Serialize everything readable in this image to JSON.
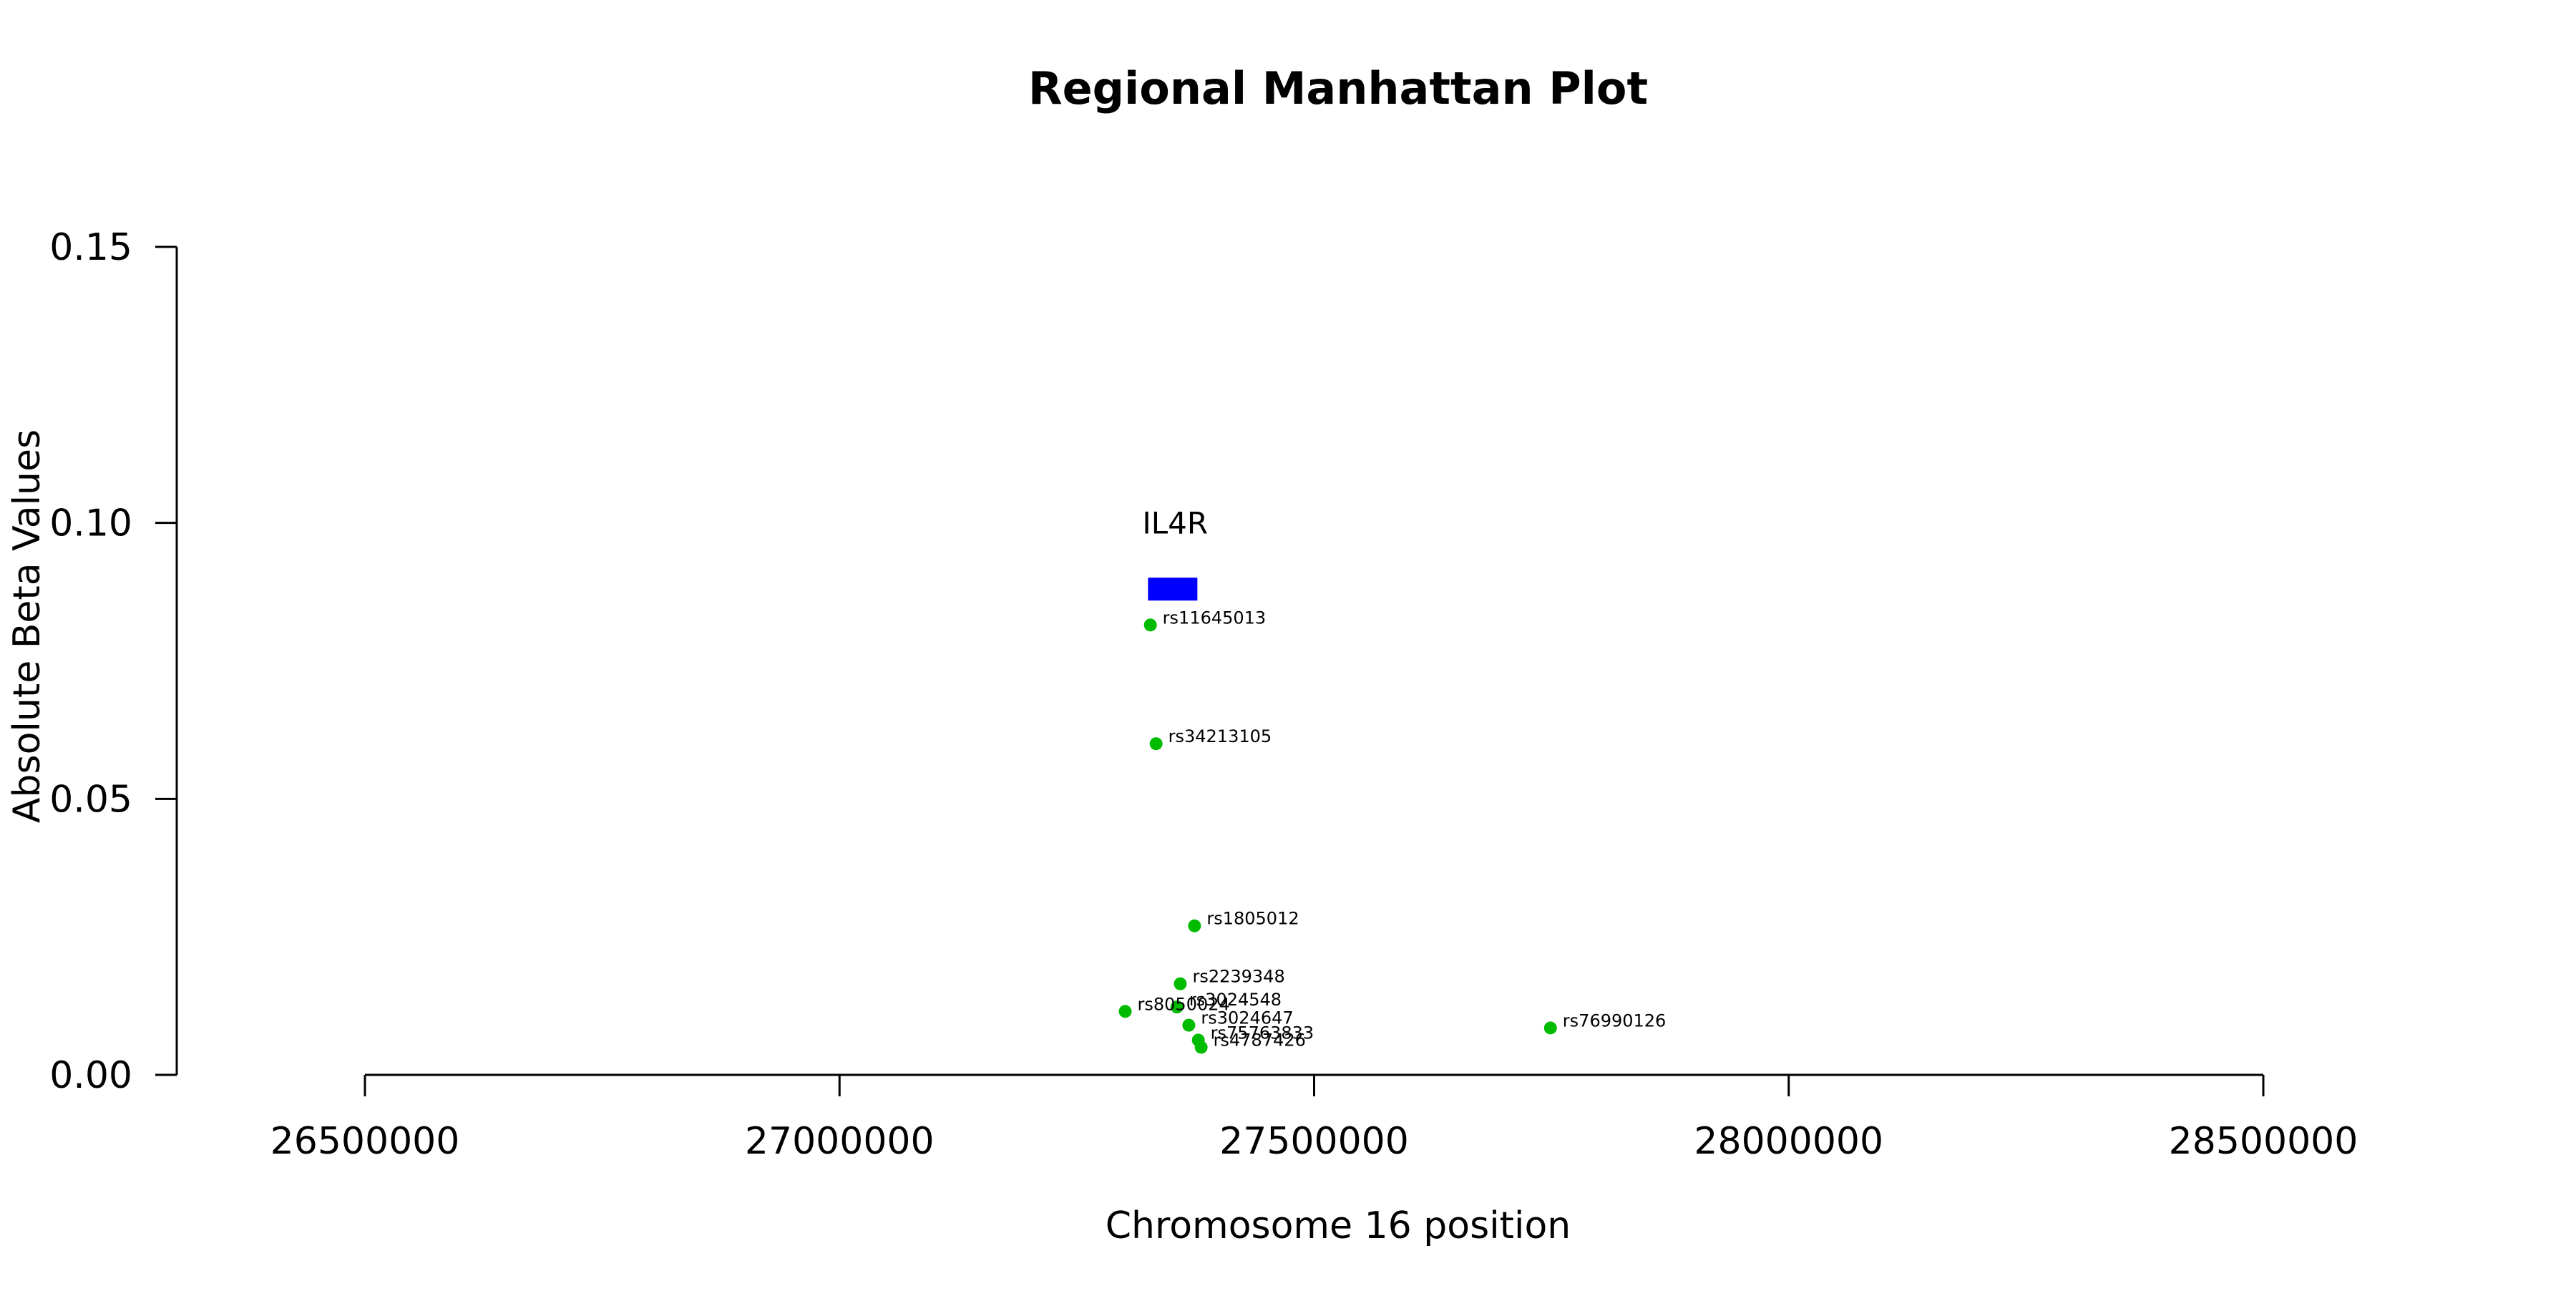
{
  "chart_data": {
    "type": "scatter",
    "title": "Regional Manhattan Plot",
    "xlabel": "Chromosome 16 position",
    "ylabel": "Absolute Beta Values",
    "xlim": [
      26500000,
      28500000
    ],
    "ylim": [
      0,
      0.15
    ],
    "x_ticks": [
      26500000,
      27000000,
      27500000,
      28000000,
      28500000
    ],
    "x_tick_labels": [
      "26500000",
      "27000000",
      "27500000",
      "28000000",
      "28500000"
    ],
    "y_ticks": [
      0,
      0.05,
      0.1,
      0.15
    ],
    "y_tick_labels": [
      "0.00",
      "0.05",
      "0.10",
      "0.15"
    ],
    "grid": false,
    "point_color": "#00BB00",
    "gene_color": "#0000FF",
    "genes": [
      {
        "name": "IL4R",
        "start": 27325000,
        "end": 27377000,
        "y": 0.088,
        "label_y": 0.1
      }
    ],
    "points": [
      {
        "label": "rs11645013",
        "x": 27327500,
        "y": 0.0815
      },
      {
        "label": "rs34213105",
        "x": 27333500,
        "y": 0.06
      },
      {
        "label": "rs1805012",
        "x": 27374000,
        "y": 0.027
      },
      {
        "label": "rs2239348",
        "x": 27359000,
        "y": 0.0165
      },
      {
        "label": "rs3024548",
        "x": 27355500,
        "y": 0.0123
      },
      {
        "label": "rs8050024",
        "x": 27301000,
        "y": 0.0115
      },
      {
        "label": "rs3024647",
        "x": 27368000,
        "y": 0.009
      },
      {
        "label": "rs75763833",
        "x": 27378000,
        "y": 0.0063
      },
      {
        "label": "rs4787426",
        "x": 27381000,
        "y": 0.005
      },
      {
        "label": "rs76990126",
        "x": 27749000,
        "y": 0.0085
      }
    ]
  }
}
